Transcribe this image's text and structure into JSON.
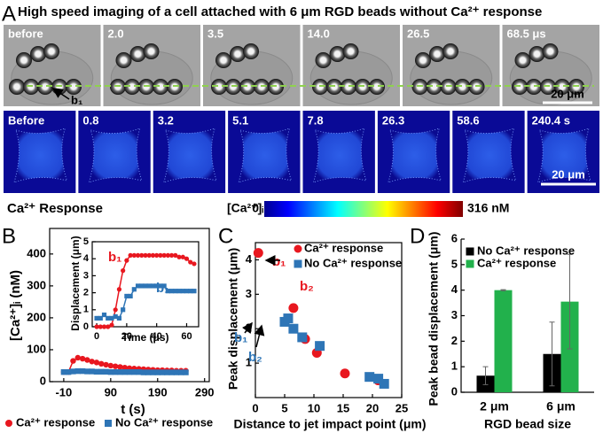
{
  "figure_title": "High speed imaging of a cell attached with 6 μm RGD beads without Ca²⁺ response",
  "panel_labels": [
    "A",
    "B",
    "C",
    "D"
  ],
  "brightfield_frames": [
    "before",
    "2.0",
    "3.5",
    "14.0",
    "26.5",
    "68.5 μs"
  ],
  "bead_label": "b₁",
  "scale_bar_top": "20 μm",
  "fluorescence_frames": [
    "Before",
    "0.8",
    "3.2",
    "5.1",
    "7.8",
    "26.3",
    "58.6",
    "240.4 s"
  ],
  "scale_bar_bottom": "20 μm",
  "response_label": "Ca²⁺ Response",
  "colorbar": {
    "label": "[Ca²⁺]ᵢ",
    "lim": [
      0,
      316
    ],
    "ticks": [
      0,
      {
        "value": 316,
        "label": "316 nM"
      }
    ]
  },
  "chart_data": [
    {
      "type": "line",
      "xlabel": "t (s)",
      "ylabel": "[Ca²⁺]ᵢ (nM)",
      "x": [
        -10,
        0,
        10,
        20,
        30,
        40,
        50,
        60,
        70,
        80,
        90,
        100,
        110,
        120,
        130,
        140,
        150,
        160,
        170,
        180,
        190,
        200,
        210,
        220,
        230,
        240,
        250
      ],
      "series": [
        {
          "name": "Ca²⁺ response",
          "color": "#e8171f",
          "marker": "circle",
          "values": [
            30,
            30,
            65,
            75,
            72,
            68,
            63,
            60,
            56,
            53,
            50,
            48,
            46,
            44,
            42,
            41,
            40,
            39,
            38,
            37,
            36,
            36,
            35,
            35,
            34,
            34,
            34
          ]
        },
        {
          "name": "No Ca²⁺ response",
          "color": "#2e75b6",
          "marker": "square",
          "values": [
            30,
            30,
            32,
            33,
            33,
            32,
            32,
            31,
            31,
            31,
            30,
            30,
            30,
            30,
            30,
            30,
            30,
            29,
            29,
            29,
            29,
            29,
            29,
            29,
            29,
            29,
            29
          ]
        }
      ],
      "xlim": [
        -40,
        300
      ],
      "xticks": [
        -10,
        90,
        190,
        290
      ],
      "ylim": [
        0,
        480
      ],
      "yticks": [
        0,
        100,
        200,
        300,
        400
      ]
    },
    {
      "type": "line",
      "xlabel": "Time (μs)",
      "ylabel": "Displacement (μm)",
      "x": [
        0,
        2.5,
        5,
        7.5,
        10,
        12.5,
        15,
        17.5,
        20,
        22.5,
        25,
        27.5,
        30,
        32.5,
        35,
        37.5,
        40,
        42.5,
        45,
        47.5,
        50,
        52.5,
        55,
        57.5,
        60,
        62.5,
        65
      ],
      "series": [
        {
          "name": "b₁",
          "color": "#e8171f",
          "marker": "circle",
          "values": [
            0,
            0,
            0,
            0,
            0.1,
            1.0,
            2.2,
            3.3,
            3.9,
            4.2,
            4.2,
            4.2,
            4.2,
            4.2,
            4.2,
            4.2,
            4.2,
            4.2,
            4.2,
            4.2,
            4.2,
            4.2,
            4.1,
            4.1,
            4.0,
            3.8,
            3.7
          ]
        },
        {
          "name": "b₁",
          "color": "#2e75b6",
          "marker": "square",
          "values": [
            0.5,
            0.5,
            0.7,
            0.5,
            0.5,
            0.6,
            0.5,
            1.0,
            1.8,
            1.8,
            2.2,
            2.4,
            2.4,
            2.4,
            2.4,
            2.4,
            2.4,
            2.4,
            2.4,
            2.1,
            2.1,
            2.1,
            2.1,
            2.1,
            2.1,
            2.1,
            2.1
          ]
        }
      ],
      "xlim": [
        -3,
        68
      ],
      "xticks": [
        0,
        20,
        40,
        60
      ],
      "ylim": [
        0,
        5
      ],
      "yticks": [
        0,
        1,
        2,
        3,
        4,
        5
      ]
    },
    {
      "type": "scatter",
      "xlabel": "Distance to jet impact point (μm)",
      "ylabel": "Peak displacement (μm)",
      "series": [
        {
          "name": "Ca²⁺ response",
          "color": "#e8171f",
          "marker": "circle",
          "x": [
            0.5,
            6.5,
            8.5,
            10.5,
            15.3,
            21
          ],
          "values": [
            4.2,
            2.6,
            1.7,
            1.3,
            0.7,
            0.5
          ]
        },
        {
          "name": "No Ca²⁺ response",
          "color": "#2e75b6",
          "marker": "square",
          "x": [
            5,
            5.6,
            6.5,
            8,
            11,
            19.5,
            21,
            22
          ],
          "values": [
            2.2,
            2.3,
            2.0,
            1.75,
            1.5,
            0.6,
            0.55,
            0.4
          ]
        }
      ],
      "annotations": [
        {
          "text": "b₁",
          "color": "#e8171f"
        },
        {
          "text": "b₂",
          "color": "#e8171f"
        },
        {
          "text": "b₁",
          "color": "#2e75b6"
        },
        {
          "text": "b₂",
          "color": "#2e75b6"
        }
      ],
      "xlim": [
        0,
        25
      ],
      "xticks": [
        0,
        5,
        10,
        15,
        20,
        25
      ],
      "ylim": [
        0,
        4.5
      ],
      "yticks": [
        1,
        2,
        3,
        4
      ]
    },
    {
      "type": "bar",
      "xlabel": "RGD bead size",
      "ylabel": "Peak bead displacement (μm)",
      "categories": [
        "2 μm",
        "6 μm"
      ],
      "series": [
        {
          "name": "No Ca²⁺ response",
          "color": "#000000",
          "values": [
            0.65,
            1.5
          ],
          "errors": [
            0.35,
            1.25
          ]
        },
        {
          "name": "Ca²⁺ response",
          "color": "#22b14c",
          "values": [
            4.0,
            3.55
          ],
          "errors": [
            0.02,
            1.85
          ]
        }
      ],
      "ylim": [
        0,
        6
      ],
      "yticks": [
        0,
        1,
        2,
        3,
        4,
        5,
        6
      ]
    }
  ]
}
